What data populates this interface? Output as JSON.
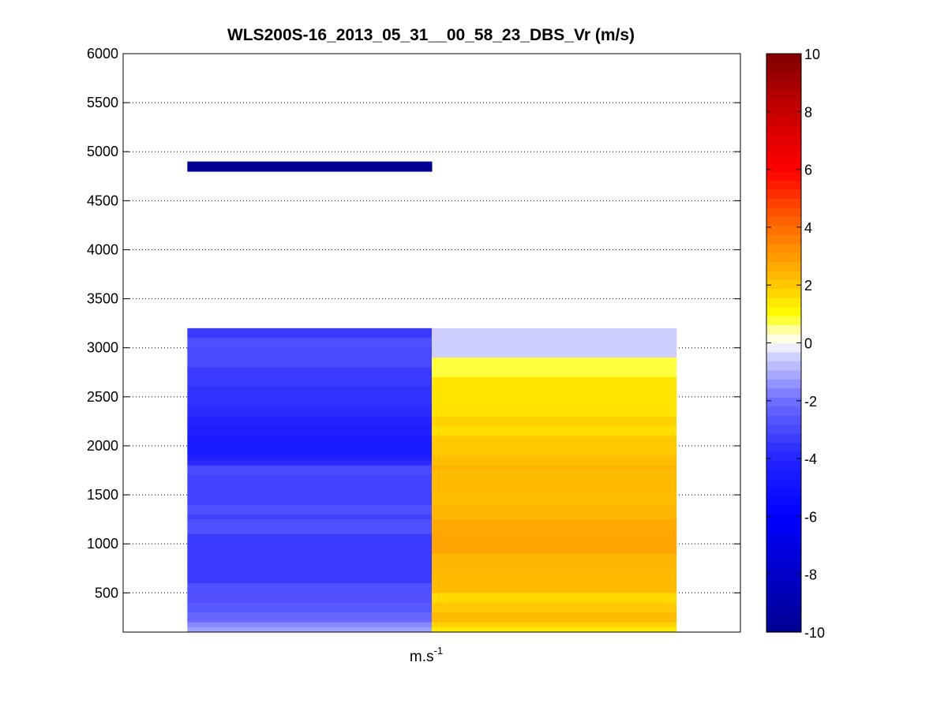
{
  "chart_data": {
    "type": "heatmap",
    "title": "WLS200S-16_2013_05_31__00_58_23_DBS_Vr (m/s)",
    "xlabel_base": "m.s",
    "xlabel_sup": "-1",
    "ylabel": "",
    "ylim": [
      100,
      6000
    ],
    "yticks": [
      500,
      1000,
      1500,
      2000,
      2500,
      3000,
      3500,
      4000,
      4500,
      5000,
      5500,
      6000
    ],
    "xlim": [
      0.5,
      3.0
    ],
    "grid": "y-dotted",
    "colorbar": {
      "clim": [
        -10,
        10
      ],
      "ticks": [
        -10,
        -8,
        -6,
        -4,
        -2,
        0,
        2,
        4,
        6,
        8,
        10
      ],
      "colormap": "blue-white-red"
    },
    "columns": [
      {
        "x_range": [
          0.76,
          1.75
        ],
        "cells": [
          {
            "z0": 4800,
            "z1": 4900,
            "v": -9.8
          },
          {
            "z0": 3100,
            "z1": 3200,
            "v": -3.4
          },
          {
            "z0": 3000,
            "z1": 3100,
            "v": -2.8
          },
          {
            "z0": 2800,
            "z1": 3000,
            "v": -3.0
          },
          {
            "z0": 2600,
            "z1": 2800,
            "v": -3.4
          },
          {
            "z0": 2400,
            "z1": 2600,
            "v": -3.6
          },
          {
            "z0": 2300,
            "z1": 2400,
            "v": -3.8
          },
          {
            "z0": 2200,
            "z1": 2300,
            "v": -4.0
          },
          {
            "z0": 2100,
            "z1": 2200,
            "v": -4.2
          },
          {
            "z0": 1900,
            "z1": 2100,
            "v": -4.6
          },
          {
            "z0": 1850,
            "z1": 1900,
            "v": -4.3
          },
          {
            "z0": 1800,
            "z1": 1850,
            "v": -3.8
          },
          {
            "z0": 1700,
            "z1": 1800,
            "v": -3.0
          },
          {
            "z0": 1400,
            "z1": 1700,
            "v": -3.2
          },
          {
            "z0": 1300,
            "z1": 1400,
            "v": -2.8
          },
          {
            "z0": 1250,
            "z1": 1300,
            "v": -3.2
          },
          {
            "z0": 1100,
            "z1": 1250,
            "v": -2.8
          },
          {
            "z0": 800,
            "z1": 1100,
            "v": -3.4
          },
          {
            "z0": 600,
            "z1": 800,
            "v": -3.4
          },
          {
            "z0": 400,
            "z1": 600,
            "v": -2.8
          },
          {
            "z0": 300,
            "z1": 400,
            "v": -2.6
          },
          {
            "z0": 200,
            "z1": 300,
            "v": -2.2
          },
          {
            "z0": 150,
            "z1": 200,
            "v": -1.6
          },
          {
            "z0": 100,
            "z1": 150,
            "v": -1.2
          }
        ]
      },
      {
        "x_range": [
          1.75,
          2.74
        ],
        "cells": [
          {
            "z0": 2900,
            "z1": 3200,
            "v": -0.5
          },
          {
            "z0": 2700,
            "z1": 2900,
            "v": 0.8
          },
          {
            "z0": 2300,
            "z1": 2700,
            "v": 1.5
          },
          {
            "z0": 2200,
            "z1": 2300,
            "v": 1.8
          },
          {
            "z0": 2100,
            "z1": 2200,
            "v": 1.6
          },
          {
            "z0": 1900,
            "z1": 2100,
            "v": 2.0
          },
          {
            "z0": 1800,
            "z1": 1900,
            "v": 2.2
          },
          {
            "z0": 1750,
            "z1": 1800,
            "v": 2.5
          },
          {
            "z0": 1500,
            "z1": 1750,
            "v": 2.3
          },
          {
            "z0": 1400,
            "z1": 1500,
            "v": 2.2
          },
          {
            "z0": 1250,
            "z1": 1400,
            "v": 2.4
          },
          {
            "z0": 1100,
            "z1": 1250,
            "v": 2.7
          },
          {
            "z0": 900,
            "z1": 1100,
            "v": 2.8
          },
          {
            "z0": 700,
            "z1": 900,
            "v": 2.4
          },
          {
            "z0": 500,
            "z1": 700,
            "v": 2.3
          },
          {
            "z0": 400,
            "z1": 500,
            "v": 1.7
          },
          {
            "z0": 300,
            "z1": 400,
            "v": 2.0
          },
          {
            "z0": 200,
            "z1": 300,
            "v": 2.3
          },
          {
            "z0": 150,
            "z1": 200,
            "v": 1.8
          },
          {
            "z0": 100,
            "z1": 150,
            "v": 1.4
          }
        ]
      }
    ]
  }
}
